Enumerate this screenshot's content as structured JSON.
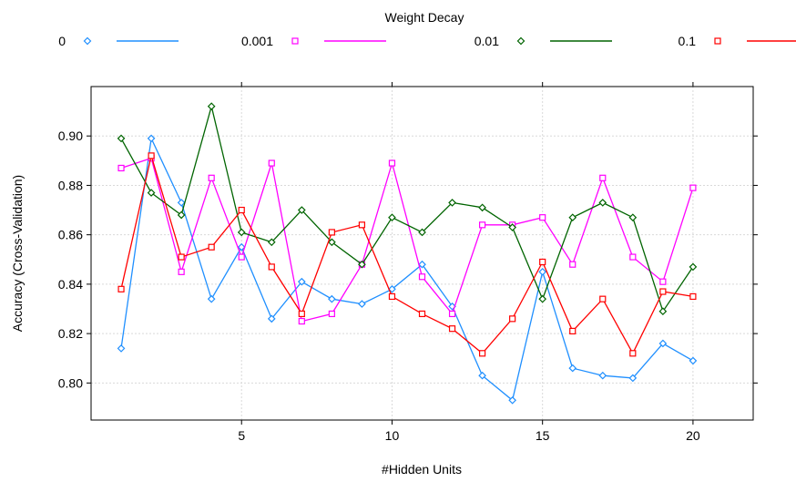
{
  "chart_data": {
    "type": "line",
    "legend": {
      "title": "Weight Decay",
      "placement": "top",
      "entries": [
        {
          "label": "0",
          "color": "#1f8fff",
          "marker": "diamond"
        },
        {
          "label": "0.001",
          "color": "#ff00ff",
          "marker": "square-open"
        },
        {
          "label": "0.01",
          "color": "#006400",
          "marker": "diamond"
        },
        {
          "label": "0.1",
          "color": "#ff0000",
          "marker": "square-open"
        }
      ]
    },
    "xlabel": "#Hidden Units",
    "ylabel": "Accuracy (Cross-Validation)",
    "xlim": [
      0,
      22
    ],
    "ylim": [
      0.785,
      0.92
    ],
    "xticks": [
      5,
      10,
      15,
      20
    ],
    "yticks": [
      0.8,
      0.82,
      0.84,
      0.86,
      0.88,
      0.9
    ],
    "ytick_labels": [
      "0.80",
      "0.82",
      "0.84",
      "0.86",
      "0.88",
      "0.90"
    ],
    "grid": true,
    "x": [
      1,
      2,
      3,
      4,
      5,
      6,
      7,
      8,
      9,
      10,
      11,
      12,
      13,
      14,
      15,
      16,
      17,
      18,
      19,
      20
    ],
    "series": [
      {
        "name": "0",
        "color": "#1f8fff",
        "marker": "diamond",
        "values": [
          0.814,
          0.899,
          0.873,
          0.834,
          0.855,
          0.826,
          0.841,
          0.834,
          0.832,
          0.838,
          0.848,
          0.831,
          0.803,
          0.793,
          0.845,
          0.806,
          0.803,
          0.802,
          0.816,
          0.809
        ]
      },
      {
        "name": "0.001",
        "color": "#ff00ff",
        "marker": "square-open",
        "values": [
          0.887,
          0.891,
          0.845,
          0.883,
          0.851,
          0.889,
          0.825,
          0.828,
          0.848,
          0.889,
          0.843,
          0.828,
          0.864,
          0.864,
          0.867,
          0.848,
          0.883,
          0.851,
          0.841,
          0.879
        ]
      },
      {
        "name": "0.01",
        "color": "#006400",
        "marker": "diamond",
        "values": [
          0.899,
          0.877,
          0.868,
          0.912,
          0.861,
          0.857,
          0.87,
          0.857,
          0.848,
          0.867,
          0.861,
          0.873,
          0.871,
          0.863,
          0.834,
          0.867,
          0.873,
          0.867,
          0.829,
          0.847
        ]
      },
      {
        "name": "0.1",
        "color": "#ff0000",
        "marker": "square-open",
        "values": [
          0.838,
          0.892,
          0.851,
          0.855,
          0.87,
          0.847,
          0.828,
          0.861,
          0.864,
          0.835,
          0.828,
          0.822,
          0.812,
          0.826,
          0.849,
          0.821,
          0.834,
          0.812,
          0.837,
          0.835
        ]
      }
    ]
  }
}
